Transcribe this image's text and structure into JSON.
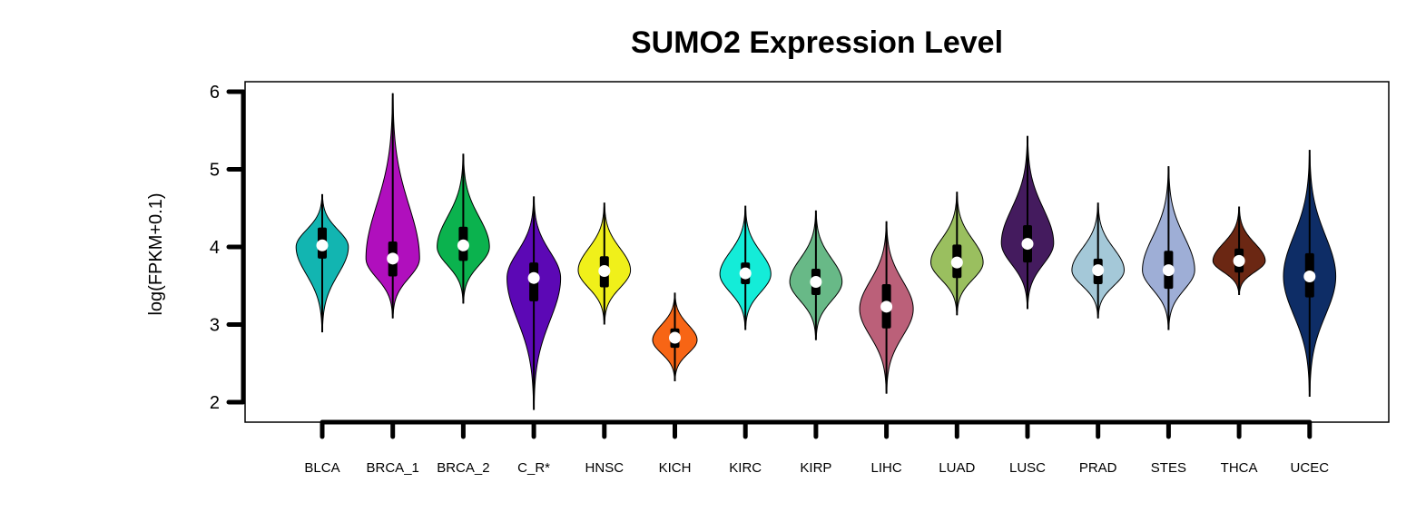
{
  "chart_data": {
    "type": "violin",
    "title": "SUMO2 Expression Level",
    "ylabel": "log(FPKM+0.1)",
    "xlabel": "",
    "ylim": [
      1.85,
      6.1
    ],
    "yticks": [
      2,
      3,
      4,
      5,
      6
    ],
    "grid": false,
    "legend": "none",
    "series": [
      {
        "category": "BLCA",
        "color": "#12b5b1",
        "min": 2.9,
        "max": 4.68,
        "q1": 3.85,
        "median": 4.02,
        "q3": 4.25,
        "wlo": 3.2,
        "whi": 4.67,
        "mode": 4.0,
        "width": 0.8
      },
      {
        "category": "BRCA_1",
        "color": "#b00fbd",
        "min": 3.08,
        "max": 5.98,
        "q1": 3.62,
        "median": 3.85,
        "q3": 4.07,
        "wlo": 3.1,
        "whi": 5.25,
        "mode": 3.85,
        "width": 0.82
      },
      {
        "category": "BRCA_2",
        "color": "#0bb24e",
        "min": 3.27,
        "max": 5.2,
        "q1": 3.82,
        "median": 4.02,
        "q3": 4.26,
        "wlo": 3.3,
        "whi": 5.15,
        "mode": 4.0,
        "width": 0.8
      },
      {
        "category": "C_R*",
        "color": "#5c08b5",
        "min": 1.9,
        "max": 4.65,
        "q1": 3.3,
        "median": 3.6,
        "q3": 3.8,
        "wlo": 1.95,
        "whi": 4.6,
        "mode": 3.6,
        "width": 0.82
      },
      {
        "category": "HNSC",
        "color": "#f0f01a",
        "min": 3.0,
        "max": 4.57,
        "q1": 3.48,
        "median": 3.69,
        "q3": 3.88,
        "wlo": 3.05,
        "whi": 4.5,
        "mode": 3.7,
        "width": 0.8
      },
      {
        "category": "KICH",
        "color": "#f76515",
        "min": 2.27,
        "max": 3.41,
        "q1": 2.7,
        "median": 2.83,
        "q3": 2.95,
        "wlo": 2.3,
        "whi": 3.38,
        "mode": 2.8,
        "width": 0.68
      },
      {
        "category": "KIRC",
        "color": "#14ecd8",
        "min": 2.93,
        "max": 4.53,
        "q1": 3.52,
        "median": 3.66,
        "q3": 3.8,
        "wlo": 3.0,
        "whi": 4.45,
        "mode": 3.65,
        "width": 0.78
      },
      {
        "category": "KIRP",
        "color": "#68b987",
        "min": 2.8,
        "max": 4.47,
        "q1": 3.38,
        "median": 3.55,
        "q3": 3.72,
        "wlo": 2.85,
        "whi": 4.4,
        "mode": 3.55,
        "width": 0.8
      },
      {
        "category": "LIHC",
        "color": "#bb6079",
        "min": 2.11,
        "max": 4.33,
        "q1": 2.95,
        "median": 3.23,
        "q3": 3.52,
        "wlo": 2.15,
        "whi": 4.3,
        "mode": 3.2,
        "width": 0.82
      },
      {
        "category": "LUAD",
        "color": "#9abf5f",
        "min": 3.12,
        "max": 4.71,
        "q1": 3.6,
        "median": 3.8,
        "q3": 4.03,
        "wlo": 3.15,
        "whi": 4.7,
        "mode": 3.8,
        "width": 0.8
      },
      {
        "category": "LUSC",
        "color": "#441b5e",
        "min": 3.2,
        "max": 5.43,
        "q1": 3.8,
        "median": 4.04,
        "q3": 4.28,
        "wlo": 3.22,
        "whi": 5.4,
        "mode": 4.05,
        "width": 0.8
      },
      {
        "category": "PRAD",
        "color": "#a4c8d8",
        "min": 3.08,
        "max": 4.57,
        "q1": 3.52,
        "median": 3.7,
        "q3": 3.85,
        "wlo": 3.1,
        "whi": 4.5,
        "mode": 3.7,
        "width": 0.8
      },
      {
        "category": "STES",
        "color": "#9eaed6",
        "min": 2.93,
        "max": 5.04,
        "q1": 3.46,
        "median": 3.7,
        "q3": 3.95,
        "wlo": 2.95,
        "whi": 5.0,
        "mode": 3.7,
        "width": 0.8
      },
      {
        "category": "THCA",
        "color": "#6b2713",
        "min": 3.38,
        "max": 4.52,
        "q1": 3.67,
        "median": 3.82,
        "q3": 3.98,
        "wlo": 3.4,
        "whi": 4.5,
        "mode": 3.82,
        "width": 0.8
      },
      {
        "category": "UCEC",
        "color": "#0e2d66",
        "min": 2.07,
        "max": 5.25,
        "q1": 3.35,
        "median": 3.62,
        "q3": 3.92,
        "wlo": 2.1,
        "whi": 5.2,
        "mode": 3.62,
        "width": 0.8
      }
    ]
  }
}
